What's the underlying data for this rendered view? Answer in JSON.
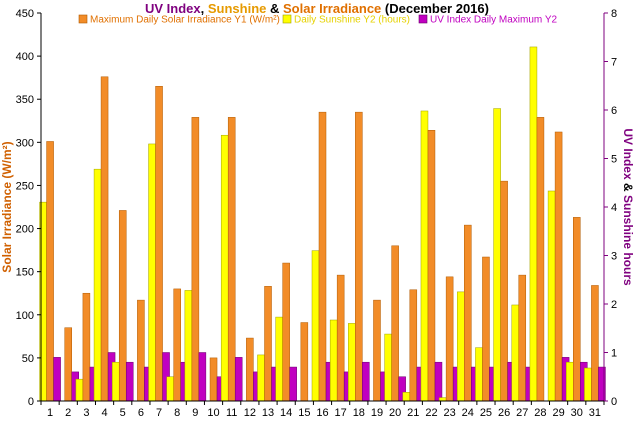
{
  "chart_data": {
    "type": "bar",
    "title_parts": [
      {
        "text": "UV Index",
        "color": "#7f007f"
      },
      {
        "text": ", ",
        "color": "#000000"
      },
      {
        "text": "Sunshine",
        "color": "#e69a00"
      },
      {
        "text": " & ",
        "color": "#000000"
      },
      {
        "text": "Solar Irradiance",
        "color": "#e07000"
      },
      {
        "text": " (December 2016)",
        "color": "#000000"
      }
    ],
    "ylabel_left": "Solar Irradiance (W/m²)",
    "ylabel_right_parts": [
      {
        "text": "UV Index",
        "color": "#7f007f"
      },
      {
        "text": " & ",
        "color": "#000000"
      },
      {
        "text": "Sunshine hours",
        "color": "#7f007f"
      }
    ],
    "ylim_left": [
      0,
      450
    ],
    "yticks_left": [
      "0",
      "50",
      "100",
      "150",
      "200",
      "250",
      "300",
      "350",
      "400",
      "450"
    ],
    "ylim_right": [
      0,
      8
    ],
    "yticks_right": [
      "0",
      "1",
      "2",
      "3",
      "4",
      "5",
      "6",
      "7",
      "8"
    ],
    "categories": [
      "1",
      "2",
      "3",
      "4",
      "5",
      "6",
      "7",
      "8",
      "9",
      "10",
      "11",
      "12",
      "13",
      "14",
      "15",
      "16",
      "17",
      "18",
      "19",
      "20",
      "21",
      "22",
      "23",
      "24",
      "25",
      "26",
      "27",
      "28",
      "29",
      "30",
      "31"
    ],
    "grid": false,
    "legend_position": "top",
    "series": [
      {
        "name": "Daily Sunshine Y2 (hours)",
        "axis": "right",
        "color": "#ffff00",
        "edge": "#a0a000",
        "values": [
          4.1,
          0,
          0.45,
          4.78,
          0.8,
          0,
          5.3,
          0.5,
          2.28,
          0,
          5.48,
          0,
          0.95,
          1.73,
          0,
          3.1,
          1.67,
          1.6,
          0,
          1.38,
          0.18,
          5.98,
          0.07,
          2.25,
          1.1,
          6.03,
          1.98,
          7.3,
          4.33,
          0.8,
          0.68
        ]
      },
      {
        "name": "Maximum Daily Solar Irradiance Y1 (W/m²)",
        "axis": "left",
        "color": "#f28c28",
        "edge": "#b05a00",
        "values": [
          301,
          85,
          125,
          376,
          221,
          117,
          365,
          130,
          329,
          50,
          329,
          73,
          133,
          160,
          91,
          335,
          146,
          335,
          117,
          180,
          129,
          314,
          144,
          204,
          167,
          255,
          146,
          329,
          312,
          213,
          134
        ]
      },
      {
        "name": "UV Index Daily Maximum Y2",
        "axis": "right",
        "color": "#c000c0",
        "edge": "#6a006a",
        "values": [
          0.9,
          0.6,
          0.7,
          1.0,
          0.8,
          0.7,
          1.0,
          0.8,
          1.0,
          0.5,
          0.9,
          0.6,
          0.7,
          0.7,
          0,
          0.8,
          0.6,
          0.8,
          0.6,
          0.5,
          0.7,
          0.8,
          0.7,
          0.7,
          0.7,
          0.8,
          0.7,
          0,
          0.9,
          0.8,
          0.7
        ]
      }
    ]
  }
}
